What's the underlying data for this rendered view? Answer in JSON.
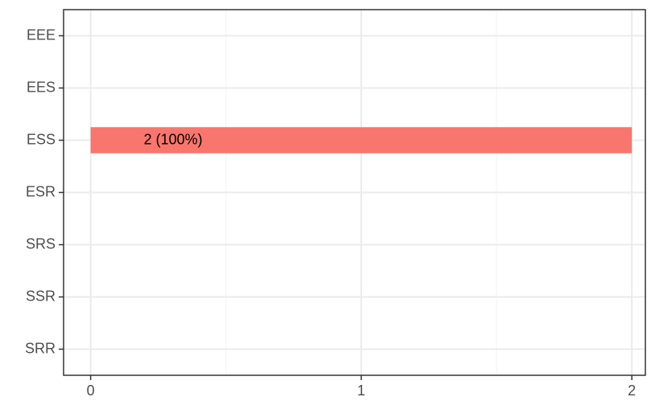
{
  "chart_data": {
    "type": "barh",
    "categories": [
      "EEE",
      "EES",
      "ESS",
      "ESR",
      "SRS",
      "SSR",
      "SRR"
    ],
    "values": [
      0,
      0,
      2,
      0,
      0,
      0,
      0
    ],
    "value_labels": [
      null,
      null,
      "2 (100%)",
      null,
      null,
      null,
      null
    ],
    "color": "#f8766d",
    "xlim": [
      -0.1,
      2.05
    ],
    "xticks": [
      0,
      1,
      2
    ],
    "x_minor_ticks": [
      0.5,
      1.5
    ],
    "grid": true
  }
}
